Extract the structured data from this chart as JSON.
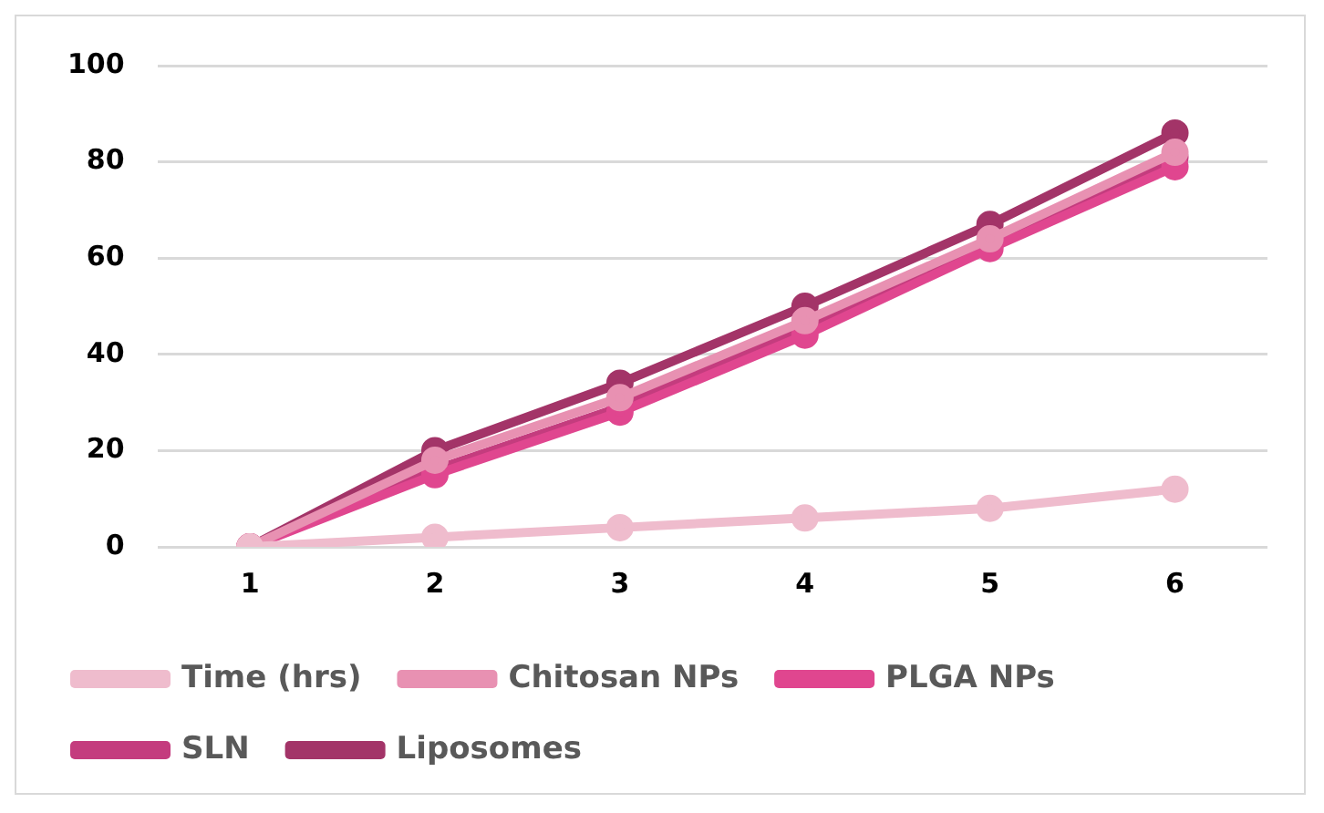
{
  "chart_data": {
    "type": "line",
    "categories": [
      "1",
      "2",
      "3",
      "4",
      "5",
      "6"
    ],
    "series": [
      {
        "name": "Time (hrs)",
        "color": "#efbccd",
        "values": [
          0,
          2,
          4,
          6,
          8,
          12
        ]
      },
      {
        "name": "Chitosan NPs",
        "color": "#e891b2",
        "values": [
          0,
          18,
          31,
          47,
          64,
          82
        ]
      },
      {
        "name": "PLGA NPs",
        "color": "#e0468f",
        "values": [
          0,
          15,
          28,
          44,
          62,
          79
        ]
      },
      {
        "name": "SLN",
        "color": "#c43c7e",
        "values": [
          0,
          16,
          29,
          46,
          63,
          81
        ]
      },
      {
        "name": "Liposomes",
        "color": "#a33468",
        "values": [
          0,
          20,
          34,
          50,
          67,
          86
        ]
      }
    ],
    "ylim": [
      0,
      100
    ],
    "yticks": [
      0,
      20,
      40,
      60,
      80,
      100
    ],
    "grid": "y",
    "legend": "bottom",
    "marker": "circle",
    "line_style": "solid"
  }
}
